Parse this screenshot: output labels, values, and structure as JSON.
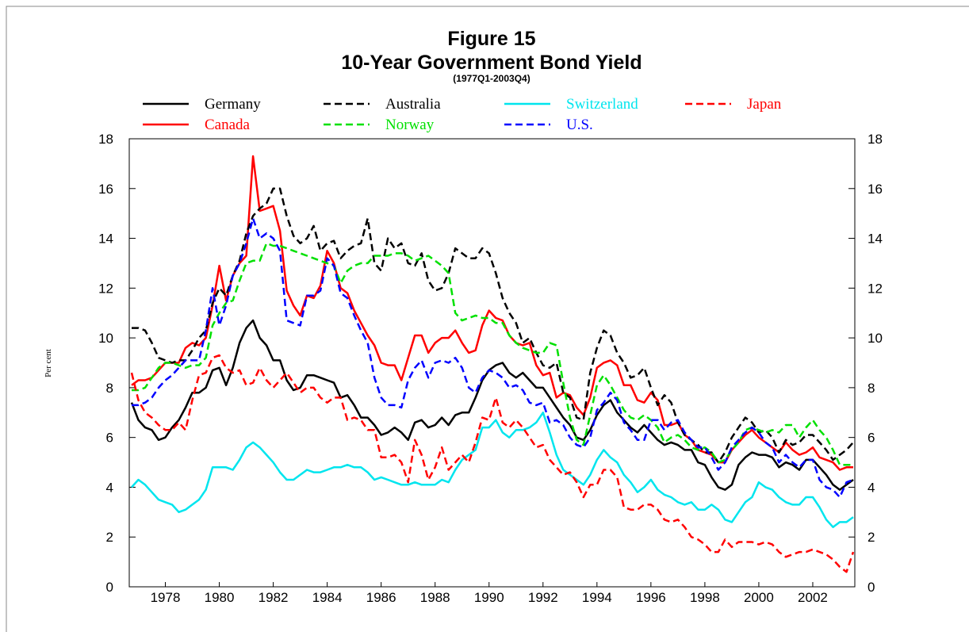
{
  "chart_data": {
    "type": "line",
    "title": "Figure 15",
    "subtitle": "10-Year Government Bond Yield",
    "note": "(1977Q1-2003Q4)",
    "y_label": "Per cent",
    "xlim": [
      1977,
      2003.75
    ],
    "ylim": [
      0,
      18
    ],
    "yticks": [
      0,
      2,
      4,
      6,
      8,
      10,
      12,
      14,
      16,
      18
    ],
    "y2lim": [
      0,
      18
    ],
    "y2ticks": [
      0,
      2,
      4,
      6,
      8,
      10,
      12,
      14,
      16,
      18
    ],
    "xticks": [
      {
        "value": 1978.25,
        "label": "1978"
      },
      {
        "value": 1980.25,
        "label": "1980"
      },
      {
        "value": 1982.25,
        "label": "1982"
      },
      {
        "value": 1984.25,
        "label": "1984"
      },
      {
        "value": 1986.25,
        "label": "1986"
      },
      {
        "value": 1988.25,
        "label": "1988"
      },
      {
        "value": 1990.25,
        "label": "1990"
      },
      {
        "value": 1992.25,
        "label": "1992"
      },
      {
        "value": 1994.25,
        "label": "1994"
      },
      {
        "value": 1996.25,
        "label": "1996"
      },
      {
        "value": 1998.25,
        "label": "1998"
      },
      {
        "value": 2000.25,
        "label": "2000"
      },
      {
        "value": 2002.25,
        "label": "2002"
      }
    ],
    "grid": false,
    "x": [
      1977,
      1977.25,
      1977.5,
      1977.75,
      1978,
      1978.25,
      1978.5,
      1978.75,
      1979,
      1979.25,
      1979.5,
      1979.75,
      1980,
      1980.25,
      1980.5,
      1980.75,
      1981,
      1981.25,
      1981.5,
      1981.75,
      1982,
      1982.25,
      1982.5,
      1982.75,
      1983,
      1983.25,
      1983.5,
      1983.75,
      1984,
      1984.25,
      1984.5,
      1984.75,
      1985,
      1985.25,
      1985.5,
      1985.75,
      1986,
      1986.25,
      1986.5,
      1986.75,
      1987,
      1987.25,
      1987.5,
      1987.75,
      1988,
      1988.25,
      1988.5,
      1988.75,
      1989,
      1989.25,
      1989.5,
      1989.75,
      1990,
      1990.25,
      1990.5,
      1990.75,
      1991,
      1991.25,
      1991.5,
      1991.75,
      1992,
      1992.25,
      1992.5,
      1992.75,
      1993,
      1993.25,
      1993.5,
      1993.75,
      1994,
      1994.25,
      1994.5,
      1994.75,
      1995,
      1995.25,
      1995.5,
      1995.75,
      1996,
      1996.25,
      1996.5,
      1996.75,
      1997,
      1997.25,
      1997.5,
      1997.75,
      1998,
      1998.25,
      1998.5,
      1998.75,
      1999,
      1999.25,
      1999.5,
      1999.75,
      2000,
      2000.25,
      2000.5,
      2000.75,
      2001,
      2001.25,
      2001.5,
      2001.75,
      2002,
      2002.25,
      2002.5,
      2002.75,
      2003,
      2003.25,
      2003.5,
      2003.75
    ],
    "series": [
      {
        "name": "Germany",
        "color": "#000000",
        "dashed": false,
        "values": [
          7.4,
          6.7,
          6.4,
          6.3,
          5.9,
          6.0,
          6.4,
          6.7,
          7.2,
          7.8,
          7.8,
          8.0,
          8.7,
          8.8,
          8.1,
          8.8,
          9.8,
          10.4,
          10.7,
          10.0,
          9.7,
          9.1,
          9.1,
          8.3,
          7.9,
          8.0,
          8.5,
          8.5,
          8.4,
          8.3,
          8.2,
          7.6,
          7.7,
          7.3,
          6.8,
          6.8,
          6.5,
          6.1,
          6.2,
          6.4,
          6.2,
          5.9,
          6.6,
          6.7,
          6.4,
          6.5,
          6.8,
          6.5,
          6.9,
          7.0,
          7.0,
          7.6,
          8.3,
          8.7,
          8.9,
          9.0,
          8.6,
          8.4,
          8.6,
          8.3,
          8.0,
          8.0,
          7.6,
          7.2,
          6.8,
          6.5,
          6.0,
          5.9,
          6.3,
          6.9,
          7.3,
          7.5,
          7.0,
          6.7,
          6.4,
          6.2,
          6.5,
          6.2,
          5.9,
          5.7,
          5.8,
          5.7,
          5.5,
          5.5,
          5.0,
          4.9,
          4.4,
          4.0,
          3.9,
          4.1,
          4.9,
          5.2,
          5.4,
          5.3,
          5.3,
          5.2,
          4.8,
          5.0,
          4.9,
          4.7,
          5.1,
          5.1,
          4.8,
          4.5,
          4.1,
          3.9,
          4.1,
          4.3
        ]
      },
      {
        "name": "Canada",
        "color": "#ff0000",
        "dashed": false,
        "values": [
          8.1,
          8.3,
          8.3,
          8.4,
          8.7,
          9.0,
          9.0,
          9.0,
          9.6,
          9.8,
          9.7,
          10.0,
          11.3,
          12.9,
          11.5,
          12.5,
          13.0,
          13.3,
          17.3,
          15.1,
          15.2,
          15.3,
          14.3,
          11.9,
          11.3,
          10.9,
          11.7,
          11.6,
          12.1,
          13.5,
          13.0,
          12.0,
          11.8,
          11.1,
          10.6,
          10.1,
          9.7,
          9.0,
          8.9,
          8.9,
          8.3,
          9.2,
          10.1,
          10.1,
          9.4,
          9.8,
          10.0,
          10.0,
          10.3,
          9.8,
          9.4,
          9.5,
          10.5,
          11.1,
          10.8,
          10.7,
          10.1,
          9.8,
          9.7,
          9.8,
          8.9,
          8.5,
          8.6,
          7.6,
          7.8,
          7.7,
          7.2,
          6.9,
          7.6,
          8.8,
          9.0,
          9.1,
          8.9,
          8.1,
          8.1,
          7.5,
          7.4,
          7.8,
          7.5,
          6.5,
          6.5,
          6.6,
          6.1,
          5.9,
          5.5,
          5.4,
          5.3,
          5.0,
          5.0,
          5.5,
          5.8,
          6.1,
          6.3,
          6.0,
          5.8,
          5.6,
          5.4,
          5.8,
          5.5,
          5.3,
          5.4,
          5.6,
          5.2,
          5.1,
          5.0,
          4.7,
          4.8,
          4.8
        ]
      },
      {
        "name": "Australia",
        "color": "#000000",
        "dashed": true,
        "values": [
          10.4,
          10.4,
          10.3,
          9.8,
          9.2,
          9.1,
          9.0,
          9.1,
          9.1,
          9.5,
          10.0,
          10.3,
          11.4,
          12.0,
          11.7,
          12.5,
          13.1,
          14.2,
          14.9,
          15.2,
          15.4,
          16.0,
          16.0,
          14.9,
          14.1,
          13.8,
          14.0,
          14.5,
          13.5,
          13.8,
          13.9,
          13.2,
          13.5,
          13.7,
          13.8,
          14.8,
          13.0,
          12.7,
          14.0,
          13.6,
          13.8,
          13.0,
          12.9,
          13.4,
          12.3,
          11.9,
          12.0,
          12.6,
          13.6,
          13.4,
          13.2,
          13.2,
          13.6,
          13.4,
          12.6,
          11.6,
          11.0,
          10.6,
          9.8,
          10.0,
          9.4,
          8.9,
          8.8,
          9.0,
          7.8,
          7.6,
          6.8,
          6.7,
          8.6,
          9.6,
          10.3,
          10.1,
          9.4,
          9.0,
          8.4,
          8.5,
          8.8,
          8.0,
          7.3,
          7.7,
          7.4,
          6.6,
          6.1,
          5.9,
          5.7,
          5.4,
          5.4,
          5.0,
          5.4,
          6.0,
          6.4,
          6.8,
          6.6,
          6.2,
          6.3,
          6.0,
          5.4,
          5.9,
          5.7,
          5.8,
          6.1,
          6.1,
          5.8,
          5.5,
          5.1,
          5.3,
          5.5,
          5.8
        ]
      },
      {
        "name": "Norway",
        "color": "#00e000",
        "dashed": true,
        "values": [
          7.9,
          7.9,
          8.0,
          8.4,
          8.8,
          9.0,
          9.0,
          8.9,
          8.8,
          8.9,
          8.9,
          9.2,
          10.5,
          11.0,
          11.4,
          11.5,
          12.3,
          13.0,
          13.1,
          13.1,
          13.8,
          13.7,
          13.7,
          13.6,
          13.5,
          13.4,
          13.3,
          13.2,
          13.1,
          13.0,
          12.9,
          12.2,
          12.7,
          12.9,
          13.0,
          13.0,
          13.3,
          13.3,
          13.3,
          13.4,
          13.4,
          13.3,
          13.1,
          13.2,
          13.3,
          13.1,
          12.9,
          12.6,
          11.0,
          10.7,
          10.8,
          10.9,
          10.8,
          10.8,
          10.6,
          10.6,
          10.1,
          9.8,
          9.6,
          9.5,
          9.4,
          9.4,
          9.8,
          9.7,
          8.2,
          6.8,
          5.9,
          5.7,
          6.9,
          8.1,
          8.5,
          8.1,
          7.6,
          7.1,
          6.8,
          6.7,
          6.9,
          6.7,
          6.4,
          5.8,
          6.0,
          6.1,
          5.9,
          5.6,
          5.5,
          5.6,
          5.4,
          5.0,
          5.1,
          5.5,
          5.8,
          6.3,
          6.4,
          6.3,
          6.2,
          6.3,
          6.2,
          6.5,
          6.5,
          6.0,
          6.4,
          6.7,
          6.3,
          6.0,
          5.5,
          4.9,
          4.9,
          4.9
        ]
      },
      {
        "name": "Switzerland",
        "color": "#00e5ee",
        "dashed": false,
        "values": [
          4.0,
          4.3,
          4.1,
          3.8,
          3.5,
          3.4,
          3.3,
          3.0,
          3.1,
          3.3,
          3.5,
          3.9,
          4.8,
          4.8,
          4.8,
          4.7,
          5.1,
          5.6,
          5.8,
          5.6,
          5.3,
          5.0,
          4.6,
          4.3,
          4.3,
          4.5,
          4.7,
          4.6,
          4.6,
          4.7,
          4.8,
          4.8,
          4.9,
          4.8,
          4.8,
          4.6,
          4.3,
          4.4,
          4.3,
          4.2,
          4.1,
          4.1,
          4.2,
          4.1,
          4.1,
          4.1,
          4.3,
          4.2,
          4.7,
          5.1,
          5.3,
          5.5,
          6.4,
          6.4,
          6.7,
          6.2,
          6.0,
          6.3,
          6.3,
          6.4,
          6.6,
          7.0,
          6.2,
          5.3,
          4.7,
          4.5,
          4.3,
          4.1,
          4.5,
          5.1,
          5.5,
          5.2,
          5.0,
          4.5,
          4.2,
          3.8,
          4.0,
          4.3,
          3.9,
          3.7,
          3.6,
          3.4,
          3.3,
          3.4,
          3.1,
          3.1,
          3.3,
          3.1,
          2.7,
          2.6,
          3.0,
          3.4,
          3.6,
          4.2,
          4.0,
          3.9,
          3.6,
          3.4,
          3.3,
          3.3,
          3.6,
          3.6,
          3.2,
          2.7,
          2.4,
          2.6,
          2.6,
          2.8
        ]
      },
      {
        "name": "U.S.",
        "color": "#0000ff",
        "dashed": true,
        "values": [
          7.3,
          7.3,
          7.4,
          7.6,
          8.0,
          8.3,
          8.5,
          8.8,
          9.1,
          9.1,
          9.1,
          10.3,
          12.0,
          10.5,
          11.3,
          12.5,
          13.0,
          13.8,
          14.8,
          14.0,
          14.2,
          14.0,
          13.5,
          10.7,
          10.6,
          10.5,
          11.7,
          11.7,
          11.9,
          13.2,
          12.9,
          11.8,
          11.6,
          10.9,
          10.3,
          9.8,
          8.4,
          7.6,
          7.3,
          7.3,
          7.2,
          8.3,
          8.8,
          9.1,
          8.4,
          9.0,
          9.1,
          9.0,
          9.2,
          8.8,
          8.0,
          7.8,
          8.4,
          8.7,
          8.6,
          8.4,
          8.0,
          8.1,
          7.9,
          7.4,
          7.3,
          7.4,
          6.6,
          6.7,
          6.5,
          6.0,
          5.7,
          5.6,
          6.0,
          7.1,
          7.4,
          7.8,
          7.5,
          6.6,
          6.3,
          5.9,
          5.9,
          6.7,
          6.7,
          6.3,
          6.6,
          6.7,
          6.2,
          5.9,
          5.6,
          5.6,
          5.2,
          4.7,
          5.0,
          5.6,
          5.9,
          6.2,
          6.4,
          6.2,
          5.8,
          5.6,
          5.0,
          5.3,
          5.0,
          4.8,
          5.1,
          5.1,
          4.3,
          4.0,
          3.9,
          3.6,
          4.2,
          4.3
        ]
      },
      {
        "name": "Japan",
        "color": "#ff0000",
        "dashed": true,
        "values": [
          8.6,
          7.5,
          7.0,
          6.8,
          6.5,
          6.3,
          6.3,
          6.6,
          6.3,
          7.5,
          8.5,
          8.6,
          9.2,
          9.3,
          8.8,
          8.6,
          8.7,
          8.1,
          8.2,
          8.8,
          8.3,
          8.0,
          8.3,
          8.6,
          8.2,
          7.8,
          8.0,
          8.0,
          7.6,
          7.4,
          7.6,
          7.6,
          6.7,
          6.8,
          6.7,
          6.3,
          6.3,
          5.2,
          5.2,
          5.3,
          5.0,
          4.2,
          5.9,
          5.3,
          4.3,
          4.8,
          5.6,
          4.7,
          5.0,
          5.3,
          5.0,
          5.8,
          6.8,
          6.7,
          7.6,
          6.6,
          6.4,
          6.7,
          6.4,
          6.0,
          5.6,
          5.7,
          5.1,
          4.8,
          4.5,
          4.6,
          4.2,
          3.6,
          4.1,
          4.1,
          4.7,
          4.7,
          4.4,
          3.2,
          3.1,
          3.1,
          3.3,
          3.3,
          3.1,
          2.7,
          2.6,
          2.7,
          2.4,
          2.0,
          1.9,
          1.7,
          1.4,
          1.4,
          1.9,
          1.6,
          1.8,
          1.8,
          1.8,
          1.7,
          1.8,
          1.7,
          1.4,
          1.2,
          1.3,
          1.4,
          1.4,
          1.5,
          1.4,
          1.3,
          1.1,
          0.8,
          0.6,
          1.4
        ]
      }
    ]
  }
}
